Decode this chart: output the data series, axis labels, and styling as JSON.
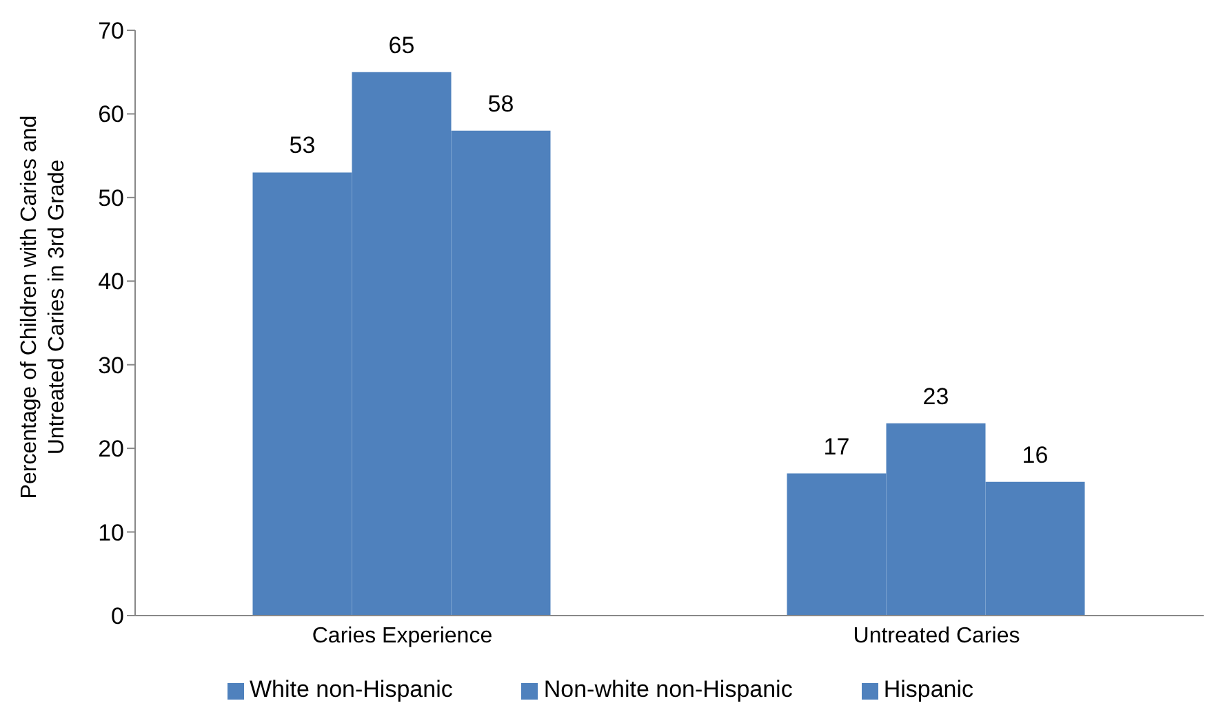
{
  "chart_data": {
    "type": "bar",
    "ylabel": "Percentage of Children with Caries and Untreated Caries in 3rd Grade",
    "categories": [
      "Caries Experience",
      "Untreated Caries"
    ],
    "series": [
      {
        "name": "White non-Hispanic",
        "color": "#4f81bd",
        "values": [
          53,
          17
        ]
      },
      {
        "name": "Non-white non-Hispanic",
        "color": "#4f81bd",
        "values": [
          65,
          23
        ]
      },
      {
        "name": "Hispanic",
        "color": "#4f81bd",
        "values": [
          58,
          16
        ]
      }
    ],
    "ylim": [
      0,
      70
    ],
    "yticks": [
      0,
      10,
      20,
      30,
      40,
      50,
      60,
      70
    ],
    "grid": false,
    "legend": "bottom",
    "data_labels": true
  }
}
